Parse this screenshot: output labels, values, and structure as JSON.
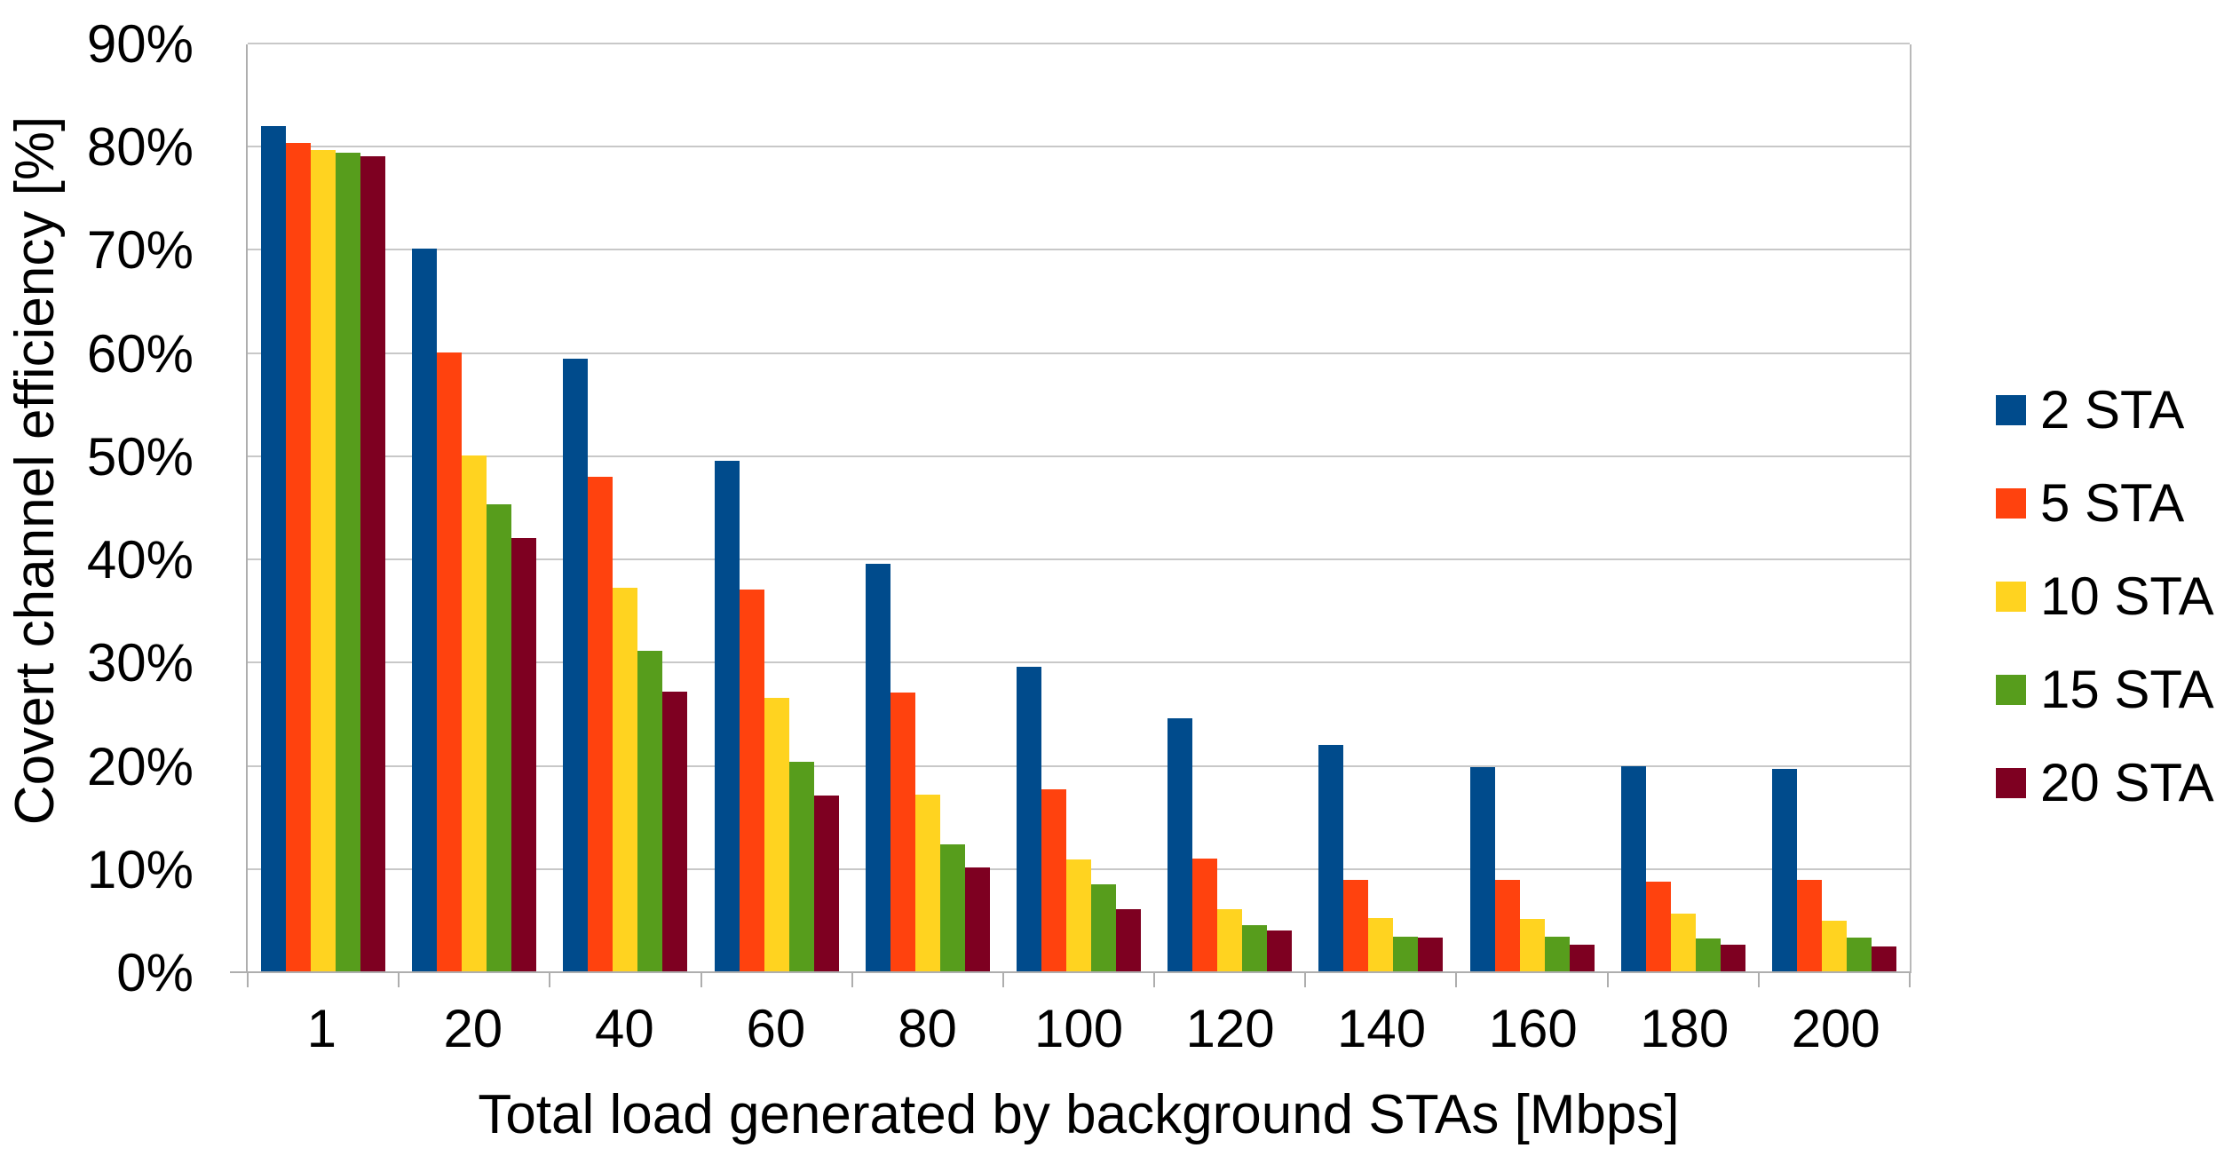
{
  "chart_data": {
    "type": "bar",
    "title": "",
    "xlabel": "Total load generated by background STAs [Mbps]",
    "ylabel": "Covert channel efficiency [%]",
    "categories": [
      "1",
      "20",
      "40",
      "60",
      "80",
      "100",
      "120",
      "140",
      "160",
      "180",
      "200"
    ],
    "series": [
      {
        "name": "2 STA",
        "color": "#004B8C",
        "values": [
          81.9,
          70.0,
          59.4,
          49.5,
          39.5,
          29.5,
          24.5,
          21.9,
          19.8,
          19.9,
          19.6
        ]
      },
      {
        "name": "5 STA",
        "color": "#FF420E",
        "values": [
          80.3,
          60.0,
          47.9,
          37.0,
          27.0,
          17.6,
          10.9,
          8.9,
          8.9,
          8.7,
          8.9
        ]
      },
      {
        "name": "10 STA",
        "color": "#FFD320",
        "values": [
          79.6,
          50.0,
          37.2,
          26.5,
          17.1,
          10.8,
          6.0,
          5.2,
          5.1,
          5.6,
          4.9
        ]
      },
      {
        "name": "15 STA",
        "color": "#579D1C",
        "values": [
          79.3,
          45.3,
          31.1,
          20.3,
          12.3,
          8.4,
          4.5,
          3.4,
          3.4,
          3.2,
          3.3
        ]
      },
      {
        "name": "20 STA",
        "color": "#7E0021",
        "values": [
          79.0,
          42.0,
          27.1,
          17.0,
          10.1,
          6.0,
          4.0,
          3.3,
          2.6,
          2.6,
          2.4
        ]
      }
    ],
    "ylim": [
      0,
      90
    ],
    "ytick_step": 10,
    "ytick_labels": [
      "0%",
      "10%",
      "20%",
      "30%",
      "40%",
      "50%",
      "60%",
      "70%",
      "80%",
      "90%"
    ],
    "grid": true,
    "legend_position": "right"
  },
  "colors": {
    "gridline": "#C8C8C8",
    "axis": "#AEAEAE",
    "text": "#000000",
    "background": "#FFFFFF"
  }
}
